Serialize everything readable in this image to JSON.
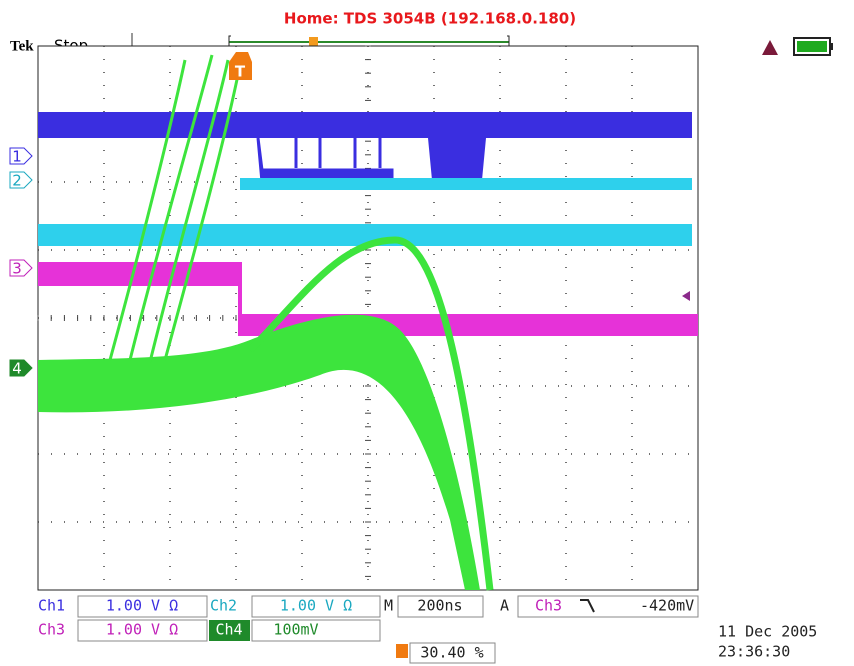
{
  "header": {
    "title": "Home:  TDS 3054B    (192.168.0.180)"
  },
  "status": {
    "brand": "Tek",
    "state": "Stop"
  },
  "markers": {
    "trigger": "T",
    "channels": [
      "1",
      "2",
      "3",
      "4"
    ]
  },
  "readouts": {
    "row1": {
      "ch1_label": "Ch1",
      "ch1_scale": "1.00 V Ω",
      "ch2_label": "Ch2",
      "ch2_scale": "1.00 V Ω",
      "timebase_label": "M",
      "timebase": "200ns",
      "trigger_label": "A",
      "trigger_source": "Ch3",
      "trigger_level": "-420mV"
    },
    "row2": {
      "ch3_label": "Ch3",
      "ch3_scale": "1.00 V Ω",
      "ch4_label": "Ch4",
      "ch4_scale": "100mV"
    },
    "trigger_position": "30.40 %",
    "date": "11 Dec  2005",
    "time": "23:36:30"
  }
}
